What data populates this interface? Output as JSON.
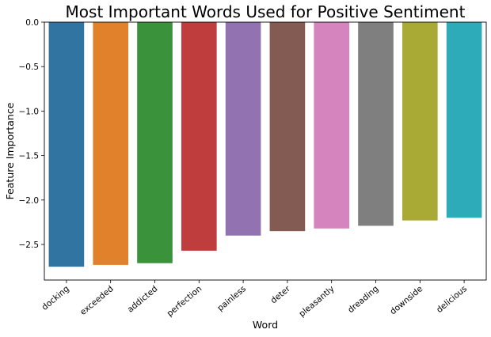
{
  "chart_data": {
    "type": "bar",
    "title": "Most Important Words Used for Positive Sentiment",
    "xlabel": "Word",
    "ylabel": "Feature Importance",
    "categories": [
      "docking",
      "exceeded",
      "addicted",
      "perfection",
      "painless",
      "deter",
      "pleasantly",
      "dreading",
      "downside",
      "delicious"
    ],
    "values": [
      -2.75,
      -2.73,
      -2.71,
      -2.57,
      -2.4,
      -2.35,
      -2.32,
      -2.29,
      -2.23,
      -2.2
    ],
    "colors": [
      "#3274a1",
      "#e1812c",
      "#3a923a",
      "#c03d3e",
      "#9372b2",
      "#845b53",
      "#d684bd",
      "#7f7f7f",
      "#a9aa35",
      "#2eabb8"
    ],
    "ylim": [
      -2.9,
      0.0
    ],
    "yticks": [
      0.0,
      -0.5,
      -1.0,
      -1.5,
      -2.0,
      -2.5
    ],
    "ytick_labels": [
      "0.0",
      "−0.5",
      "−1.0",
      "−1.5",
      "−2.0",
      "−2.5"
    ],
    "grid": false,
    "legend": "none"
  }
}
